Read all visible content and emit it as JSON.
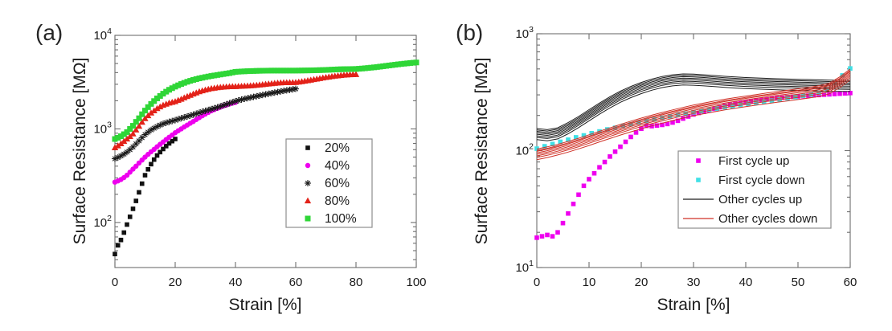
{
  "chart_data": [
    {
      "id": "a",
      "type": "scatter",
      "panel_label": "(a)",
      "xlabel": "Strain [%]",
      "ylabel": "Surface Resistance [MΩ]",
      "xlim": [
        0,
        100
      ],
      "xticks": [
        0,
        20,
        40,
        60,
        80,
        100
      ],
      "yscale": "log",
      "ylim": [
        33,
        10000
      ],
      "ytick_exponents": [
        2,
        3,
        4
      ],
      "grid": false,
      "legend_position": "right-middle",
      "series": [
        {
          "name": "20%",
          "marker": "square",
          "color": "#111111",
          "size": 5.6,
          "x_start": 0,
          "x_step": 1,
          "y": [
            46,
            57,
            65,
            78,
            95,
            115,
            140,
            170,
            210,
            260,
            320,
            370,
            420,
            470,
            520,
            565,
            610,
            655,
            700,
            740,
            780
          ]
        },
        {
          "name": "40%",
          "marker": "circle",
          "color": "#ee00ee",
          "size": 6.4,
          "x_start": 0,
          "x_step": 1,
          "y": [
            270,
            278,
            288,
            302,
            320,
            345,
            372,
            400,
            432,
            465,
            500,
            535,
            570,
            605,
            645,
            685,
            725,
            770,
            815,
            860,
            910,
            955,
            1000,
            1050,
            1100,
            1150,
            1200,
            1260,
            1320,
            1380,
            1440,
            1500,
            1560,
            1610,
            1660,
            1710,
            1760,
            1800,
            1845,
            1885,
            1920
          ]
        },
        {
          "name": "60%",
          "marker": "asterisk",
          "color": "#1a1a1a",
          "size": 8,
          "x_start": 0,
          "x_step": 1,
          "y": [
            480,
            495,
            515,
            538,
            565,
            600,
            642,
            692,
            745,
            806,
            870,
            923,
            975,
            1018,
            1060,
            1098,
            1135,
            1163,
            1190,
            1215,
            1240,
            1270,
            1300,
            1330,
            1360,
            1390,
            1420,
            1455,
            1490,
            1525,
            1560,
            1595,
            1630,
            1665,
            1700,
            1745,
            1790,
            1835,
            1880,
            1930,
            1980,
            2020,
            2060,
            2095,
            2130,
            2165,
            2200,
            2235,
            2270,
            2305,
            2340,
            2375,
            2410,
            2445,
            2480,
            2515,
            2550,
            2583,
            2615,
            2648,
            2680
          ]
        },
        {
          "name": "80%",
          "marker": "triangle",
          "color": "#e32219",
          "size": 7.5,
          "x_start": 0,
          "x_step": 1,
          "y": [
            630,
            660,
            695,
            735,
            780,
            830,
            885,
            975,
            1070,
            1180,
            1290,
            1385,
            1480,
            1565,
            1650,
            1720,
            1790,
            1840,
            1890,
            1925,
            1960,
            2020,
            2080,
            2150,
            2220,
            2290,
            2360,
            2430,
            2500,
            2555,
            2610,
            2655,
            2700,
            2730,
            2760,
            2780,
            2800,
            2815,
            2830,
            2835,
            2840,
            2850,
            2860,
            2870,
            2880,
            2895,
            2910,
            2930,
            2950,
            2975,
            3000,
            3025,
            3050,
            3070,
            3090,
            3105,
            3120,
            3125,
            3130,
            3135,
            3140,
            3170,
            3200,
            3240,
            3280,
            3325,
            3370,
            3415,
            3460,
            3505,
            3550,
            3590,
            3630,
            3665,
            3700,
            3730,
            3760,
            3780,
            3800,
            3810,
            3820
          ]
        },
        {
          "name": "100%",
          "marker": "square",
          "color": "#2fd637",
          "size": 7,
          "x_start": 0,
          "x_step": 1,
          "y": [
            780,
            805,
            835,
            878,
            925,
            1000,
            1080,
            1190,
            1300,
            1435,
            1570,
            1710,
            1850,
            1985,
            2120,
            2250,
            2380,
            2500,
            2620,
            2725,
            2830,
            2925,
            3020,
            3105,
            3190,
            3265,
            3340,
            3405,
            3470,
            3525,
            3580,
            3630,
            3680,
            3725,
            3770,
            3815,
            3860,
            3905,
            3950,
            4010,
            4070,
            4090,
            4110,
            4125,
            4140,
            4150,
            4160,
            4170,
            4180,
            4185,
            4190,
            4195,
            4200,
            4200,
            4200,
            4200,
            4200,
            4200,
            4200,
            4200,
            4200,
            4205,
            4210,
            4215,
            4220,
            4225,
            4230,
            4240,
            4250,
            4260,
            4270,
            4285,
            4300,
            4315,
            4330,
            4340,
            4350,
            4355,
            4360,
            4365,
            4370,
            4395,
            4420,
            4450,
            4480,
            4515,
            4550,
            4590,
            4630,
            4675,
            4720,
            4765,
            4810,
            4855,
            4900,
            4940,
            4980,
            5020,
            5060,
            5095,
            5130
          ]
        }
      ]
    },
    {
      "id": "b",
      "type": "scatter",
      "panel_label": "(b)",
      "xlabel": "Strain [%]",
      "ylabel": "Surface Resistance [MΩ]",
      "xlim": [
        0,
        60
      ],
      "xticks": [
        0,
        10,
        20,
        30,
        40,
        50,
        60
      ],
      "yscale": "log",
      "ylim": [
        10,
        1000
      ],
      "ytick_exponents": [
        1,
        2,
        3
      ],
      "grid": false,
      "legend_position": "right-middle",
      "series": [
        {
          "name": "First cycle up",
          "marker": "square",
          "color": "#ee00ee",
          "size": 5.6,
          "x_start": 0,
          "x_step": 1,
          "y": [
            18,
            18.5,
            19,
            18.5,
            20,
            24,
            29,
            35,
            42,
            50,
            57,
            64,
            72,
            80,
            89,
            98,
            108,
            119,
            131,
            143,
            154,
            163,
            162,
            164,
            166,
            169,
            174,
            180,
            188,
            196,
            204,
            210,
            215,
            221,
            228,
            235,
            242,
            247,
            252,
            257,
            261,
            265,
            269,
            272,
            275,
            278,
            281,
            284,
            287,
            289,
            291,
            293,
            295,
            297,
            299,
            301,
            303,
            305,
            307,
            309,
            311
          ]
        },
        {
          "name": "First cycle down",
          "marker": "square",
          "color": "#40e0e6",
          "size": 5.6,
          "x_start": 0,
          "x_step": 1.5,
          "y": [
            104,
            109,
            114,
            119,
            124,
            130,
            135,
            141,
            146,
            152,
            157,
            163,
            168,
            174,
            180,
            185,
            191,
            196,
            202,
            207,
            213,
            218,
            224,
            229,
            235,
            240,
            246,
            251,
            257,
            262,
            268,
            274,
            281,
            288,
            295,
            302,
            312,
            330,
            380,
            440,
            505
          ]
        },
        {
          "name": "Other cycles up",
          "marker": "line-bundle",
          "color": "#1c1c1c",
          "size": 1,
          "x_start": 0,
          "x_step": 2,
          "offsets": [
            0.9,
            0.94,
            0.97,
            1.0,
            1.03,
            1.06,
            1.09,
            1.12
          ],
          "y": [
            138,
            135,
            140,
            155,
            175,
            200,
            228,
            258,
            288,
            316,
            342,
            365,
            385,
            398,
            405,
            403,
            398,
            392,
            386,
            381,
            377,
            374,
            371,
            368,
            366,
            364,
            362,
            360,
            358,
            357,
            356
          ]
        },
        {
          "name": "Other cycles down",
          "marker": "line-bundle",
          "color": "#d03228",
          "size": 1,
          "x_start": 0,
          "x_step": 2,
          "offsets": [
            0.9,
            0.94,
            0.97,
            1.0,
            1.03,
            1.06,
            1.08,
            1.11
          ],
          "y": [
            93,
            97,
            102,
            108,
            115,
            123,
            132,
            141,
            151,
            161,
            171,
            181,
            191,
            201,
            211,
            221,
            230,
            239,
            248,
            256,
            264,
            272,
            280,
            288,
            296,
            304,
            313,
            323,
            340,
            385,
            450
          ]
        }
      ]
    }
  ]
}
